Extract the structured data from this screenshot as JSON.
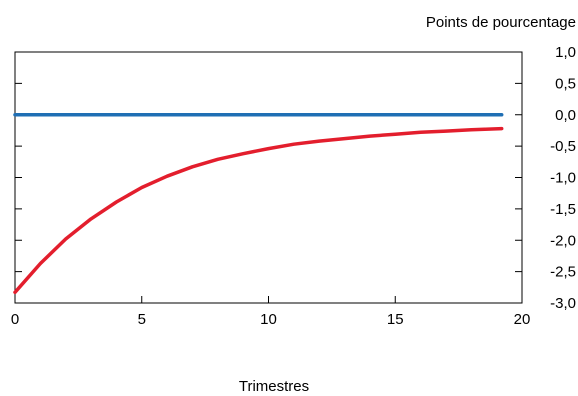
{
  "chart_data": {
    "type": "line",
    "title": "",
    "xlabel": "Trimestres",
    "ylabel": "Points de pourcentage",
    "xlim": [
      0,
      20
    ],
    "ylim": [
      -3.0,
      1.0
    ],
    "x_ticks": [
      0,
      5,
      10,
      15,
      20
    ],
    "x_tick_labels": [
      "0",
      "5",
      "10",
      "15",
      "20"
    ],
    "y_ticks": [
      1.0,
      0.5,
      0.0,
      -0.5,
      -1.0,
      -1.5,
      -2.0,
      -2.5,
      -3.0
    ],
    "y_tick_labels": [
      "1,0",
      "0,5",
      "0,0",
      "-0,5",
      "-1,0",
      "-1,5",
      "-2,0",
      "-2,5",
      "-3,0"
    ],
    "grid": false,
    "legend": "none",
    "series": [
      {
        "color": "#1f6fb4",
        "x": [
          0,
          1,
          2,
          3,
          4,
          5,
          6,
          7,
          8,
          9,
          10,
          11,
          12,
          13,
          14,
          15,
          16,
          17,
          18,
          19.2
        ],
        "values": [
          0,
          0,
          0,
          0,
          0,
          0,
          0,
          0,
          0,
          0,
          0,
          0,
          0,
          0,
          0,
          0,
          0,
          0,
          0,
          0
        ]
      },
      {
        "color": "#e31e2d",
        "x": [
          0,
          1,
          2,
          3,
          4,
          5,
          6,
          7,
          8,
          9,
          10,
          11,
          12,
          13,
          14,
          15,
          16,
          17,
          18,
          19.2
        ],
        "values": [
          -2.83,
          -2.37,
          -1.98,
          -1.66,
          -1.39,
          -1.16,
          -0.98,
          -0.83,
          -0.71,
          -0.62,
          -0.54,
          -0.47,
          -0.42,
          -0.38,
          -0.34,
          -0.31,
          -0.28,
          -0.26,
          -0.24,
          -0.22
        ]
      }
    ]
  }
}
